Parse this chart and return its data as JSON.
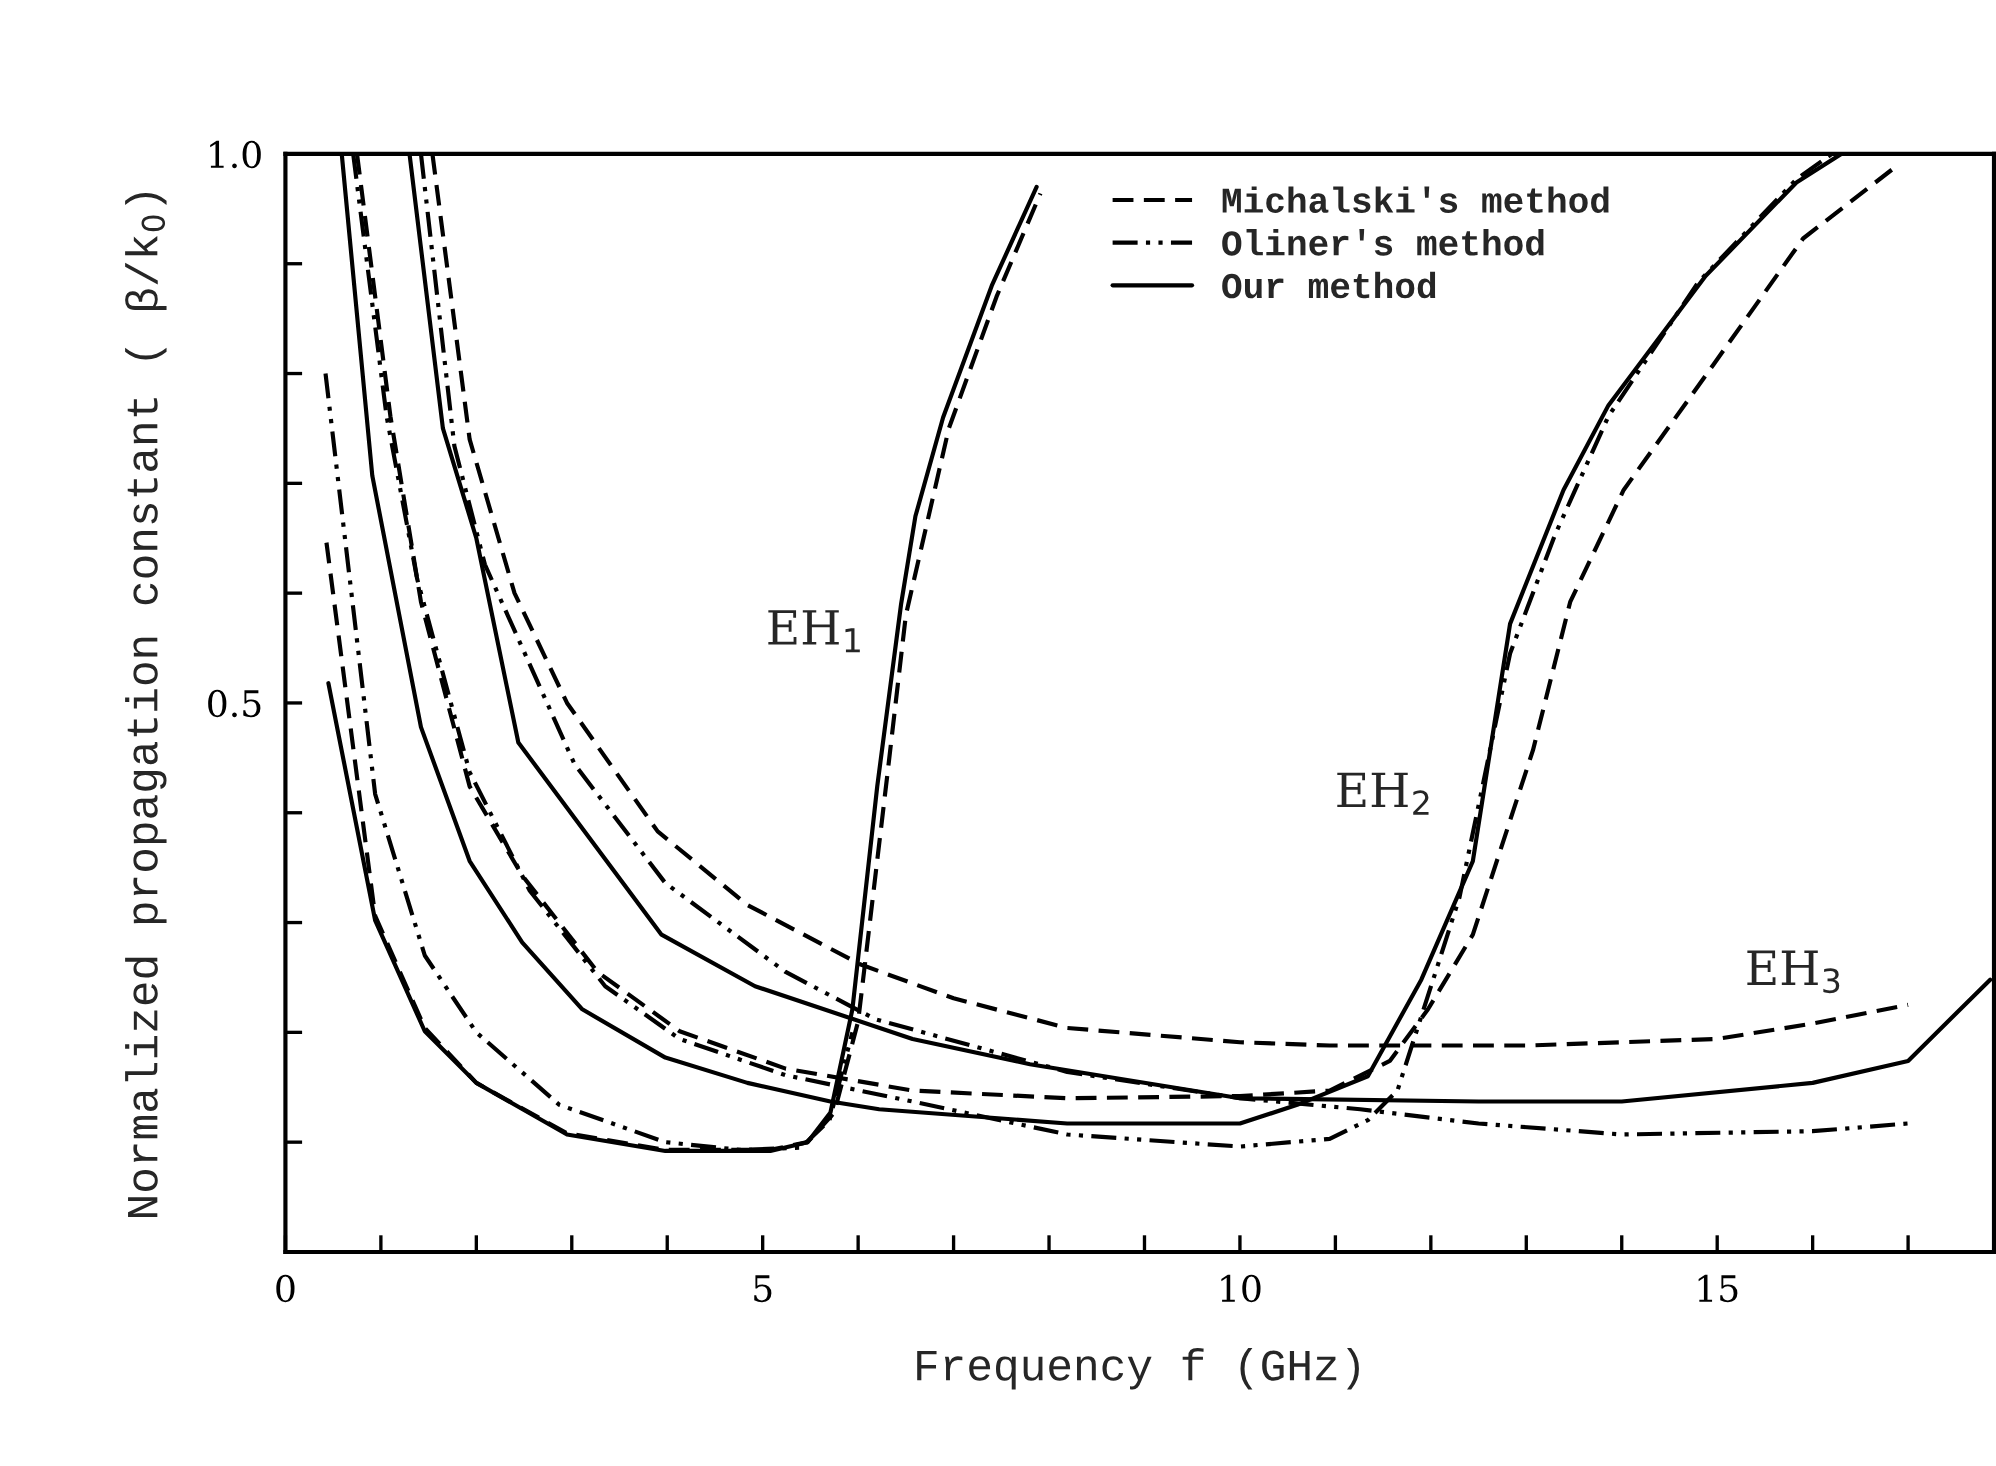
{
  "chart_data": {
    "type": "line",
    "xlabel": "Frequency f (GHz)",
    "ylabel": "Normalized propagation constant ( β/k$_{0}$)",
    "xlim": [
      0,
      17.9
    ],
    "ylim": [
      0,
      1.0
    ],
    "xticks": [
      0,
      {
        "value": 1,
        "label": null
      },
      {
        "value": 2,
        "label": null
      },
      {
        "value": 3,
        "label": null
      },
      {
        "value": 4,
        "label": null
      },
      5,
      {
        "value": 6,
        "label": null
      },
      {
        "value": 7,
        "label": null
      },
      {
        "value": 8,
        "label": null
      },
      {
        "value": 9,
        "label": null
      },
      10,
      {
        "value": 11,
        "label": null
      },
      {
        "value": 12,
        "label": null
      },
      {
        "value": 13,
        "label": null
      },
      {
        "value": 14,
        "label": null
      },
      15,
      {
        "value": 16,
        "label": null
      },
      {
        "value": 17,
        "label": null
      }
    ],
    "yticks": [
      {
        "value": 0,
        "label": null
      },
      {
        "value": 0.1,
        "label": null
      },
      {
        "value": 0.2,
        "label": null
      },
      {
        "value": 0.3,
        "label": null
      },
      {
        "value": 0.4,
        "label": null
      },
      {
        "value": 0.5,
        "label": "0.5"
      },
      {
        "value": 0.6,
        "label": null
      },
      {
        "value": 0.7,
        "label": null
      },
      {
        "value": 0.8,
        "label": null
      },
      {
        "value": 0.9,
        "label": null
      },
      {
        "value": 1.0,
        "label": "1.0"
      }
    ],
    "grid": false,
    "legend": "top",
    "marker": "none",
    "series": [
      {
        "name": "Michalski's method",
        "color": "#000000",
        "line_style": "dashed",
        "x": [
          0.43,
          0.94,
          1.46,
          2.0,
          2.95,
          3.98,
          5.08,
          5.47,
          5.75,
          6.0,
          6.3,
          6.5,
          6.95,
          7.45,
          7.91
        ],
        "values": [
          0.646,
          0.306,
          0.204,
          0.154,
          0.108,
          0.093,
          0.093,
          0.1,
          0.127,
          0.21,
          0.43,
          0.58,
          0.75,
          0.87,
          0.964
        ]
      },
      {
        "name": "Oliner's method",
        "color": "#000000",
        "line_style": "dotted",
        "x": [
          0.42,
          0.94,
          1.46,
          2.0,
          2.87,
          3.98,
          4.76,
          5.4,
          5.7,
          5.94
        ],
        "values": [
          0.8,
          0.417,
          0.27,
          0.2,
          0.134,
          0.1,
          0.093,
          0.095,
          0.12,
          0.2
        ]
      },
      {
        "name": "Our method",
        "color": "#000000",
        "line_style": "solid",
        "x": [
          0.45,
          0.94,
          1.46,
          2.0,
          2.95,
          3.98,
          5.08,
          5.47,
          5.71,
          5.94,
          6.2,
          6.45,
          6.6,
          6.89,
          7.4,
          7.87
        ],
        "values": [
          0.518,
          0.302,
          0.201,
          0.154,
          0.107,
          0.092,
          0.092,
          0.1,
          0.127,
          0.221,
          0.424,
          0.59,
          0.67,
          0.76,
          0.88,
          0.97
        ]
      },
      {
        "color": "#000000",
        "line_style": "dashed",
        "x": [
          0.75,
          1.1,
          1.42,
          1.93,
          2.48,
          3.27,
          4.13,
          5.24,
          6.57,
          8.19,
          10.0,
          10.94,
          11.57,
          11.97,
          12.44,
          13.07,
          13.46,
          14.02,
          14.96,
          15.9,
          16.85
        ],
        "values": [
          1.0,
          0.761,
          0.592,
          0.424,
          0.343,
          0.255,
          0.201,
          0.167,
          0.147,
          0.14,
          0.142,
          0.147,
          0.174,
          0.221,
          0.289,
          0.457,
          0.592,
          0.694,
          0.808,
          0.923,
          0.987
        ]
      },
      {
        "color": "#000000",
        "line_style": "dotted",
        "x": [
          0.71,
          1.06,
          1.38,
          1.93,
          2.56,
          3.35,
          4.13,
          5.24,
          6.57,
          8.19,
          10.0,
          10.94,
          11.34,
          11.65,
          12.05,
          12.3,
          12.83,
          13.3,
          13.86,
          14.8,
          15.83,
          16.2
        ],
        "values": [
          1.0,
          0.761,
          0.613,
          0.437,
          0.329,
          0.242,
          0.194,
          0.161,
          0.137,
          0.107,
          0.096,
          0.103,
          0.12,
          0.147,
          0.255,
          0.323,
          0.545,
          0.653,
          0.761,
          0.883,
          0.977,
          1.0
        ]
      },
      {
        "color": "#000000",
        "line_style": "solid",
        "x": [
          0.59,
          0.91,
          1.42,
          1.93,
          2.48,
          3.11,
          3.98,
          4.84,
          5.71,
          6.22,
          8.19,
          10.0,
          10.6,
          11.34,
          11.9,
          12.44,
          12.83,
          13.39,
          13.86,
          14.88,
          15.83,
          16.3
        ],
        "values": [
          1.0,
          0.707,
          0.478,
          0.356,
          0.282,
          0.221,
          0.177,
          0.154,
          0.137,
          0.13,
          0.117,
          0.117,
          0.134,
          0.16,
          0.248,
          0.356,
          0.572,
          0.694,
          0.771,
          0.889,
          0.974,
          1.0
        ]
      },
      {
        "color": "#000000",
        "line_style": "dashed",
        "x": [
          1.54,
          1.93,
          2.4,
          2.95,
          3.9,
          4.84,
          6.02,
          7.0,
          8.19,
          10.0,
          10.94,
          12.5,
          13.0,
          15.0,
          16.0,
          17.0
        ],
        "values": [
          1.0,
          0.74,
          0.6,
          0.5,
          0.383,
          0.316,
          0.262,
          0.231,
          0.204,
          0.191,
          0.188,
          0.188,
          0.188,
          0.194,
          0.208,
          0.225
        ]
      },
      {
        "color": "#000000",
        "line_style": "dotted",
        "x": [
          1.42,
          1.77,
          2.09,
          3.03,
          3.98,
          5.24,
          6.18,
          8.19,
          10.0,
          11.26,
          12.5,
          14.0,
          16.0,
          17.0
        ],
        "values": [
          1.0,
          0.734,
          0.626,
          0.444,
          0.336,
          0.255,
          0.212,
          0.164,
          0.14,
          0.13,
          0.117,
          0.107,
          0.11,
          0.117
        ]
      },
      {
        "color": "#000000",
        "line_style": "solid",
        "x": [
          1.3,
          1.65,
          2.0,
          2.44,
          3.94,
          4.92,
          6.57,
          7.8,
          10.0,
          12.5,
          14.0,
          16.0,
          17.0,
          17.86
        ],
        "values": [
          1.0,
          0.75,
          0.65,
          0.464,
          0.289,
          0.242,
          0.194,
          0.171,
          0.14,
          0.137,
          0.137,
          0.154,
          0.174,
          0.248
        ]
      }
    ],
    "annotations": [
      "EH$_{1}$",
      "EH$_{2}$",
      "EH$_{3}$"
    ]
  }
}
